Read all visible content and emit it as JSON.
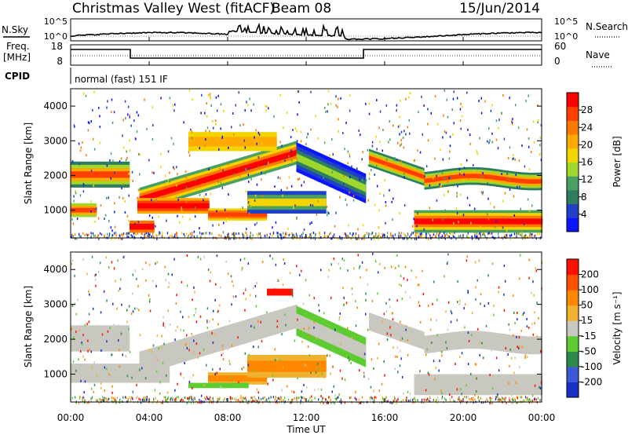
{
  "header": {
    "title": "Christmas Valley West (fitACF)",
    "beam": "Beam 08",
    "date": "15/Jun/2014"
  },
  "top_panels": {
    "nsky_label": "N.Sky",
    "nsky_ticks": [
      "10^5",
      "10^0"
    ],
    "nsearch_label": "N.Search",
    "nsearch_ticks": [
      "10^5",
      "10^0"
    ],
    "freq_label_1": "Freq.",
    "freq_label_2": "[MHz]",
    "freq_ticks": [
      "18",
      "8"
    ],
    "nave_label": "Nave",
    "nave_ticks": [
      "60",
      "0"
    ],
    "cpid_label": "CPID",
    "cpid_text": "normal (fast) 151 IF"
  },
  "chart_data": [
    {
      "type": "heatmap",
      "name": "power",
      "ylabel": "Slant Range [km]",
      "y_ticks": [
        "1000",
        "2000",
        "3000",
        "4000"
      ],
      "ylim": [
        200,
        4500
      ],
      "colorbar_label": "Power [dB]",
      "colorbar_ticks": [
        "28",
        "24",
        "20",
        "16",
        "12",
        "8",
        "4"
      ],
      "colors": [
        "#0a14ff",
        "#2040c8",
        "#2e7d5e",
        "#4aa060",
        "#9ed82c",
        "#f2d400",
        "#ffaa00",
        "#ff7800",
        "#ff4000",
        "#ff0000"
      ]
    },
    {
      "type": "heatmap",
      "name": "velocity",
      "ylabel": "Slant Range [km]",
      "y_ticks": [
        "1000",
        "2000",
        "3000",
        "4000"
      ],
      "ylim": [
        200,
        4500
      ],
      "colorbar_label": "Velocity [m s⁻¹]",
      "colorbar_ticks": [
        "200",
        "100",
        "50",
        "15",
        "-15",
        "-50",
        "-100",
        "-200"
      ],
      "colors": [
        "#1830c8",
        "#3a5ad8",
        "#2e8a4a",
        "#5ccc30",
        "#c8c8c0",
        "#f0b030",
        "#ff8800",
        "#ff5000",
        "#ff1000"
      ]
    }
  ],
  "time_axis": {
    "ticks": [
      "00:00",
      "04:00",
      "08:00",
      "12:00",
      "16:00",
      "20:00",
      "00:00"
    ],
    "label": "Time UT"
  }
}
